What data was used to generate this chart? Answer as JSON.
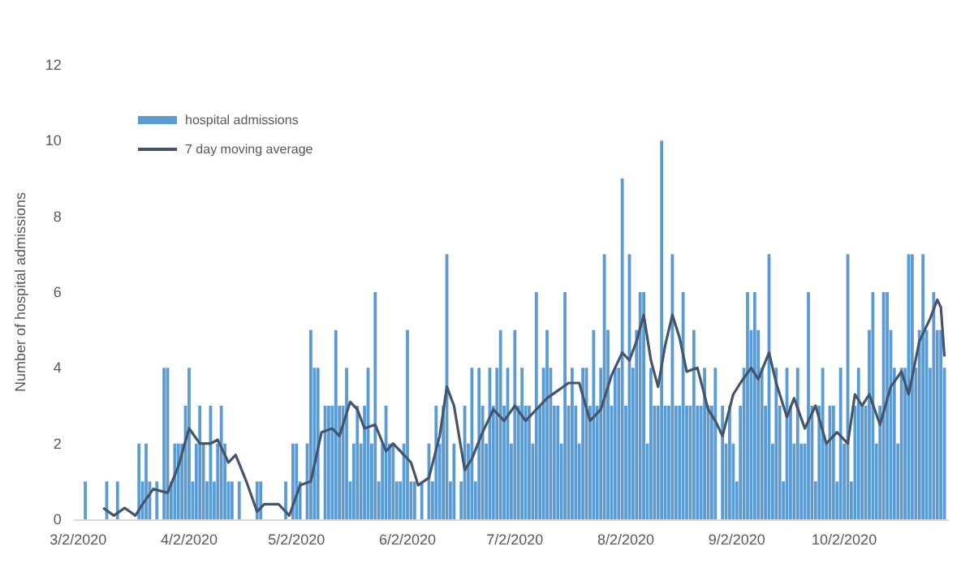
{
  "chart_data": {
    "type": "bar",
    "ylabel": "Number of hospital admissions",
    "x": [
      "2020-03-02",
      "2020-03-03",
      "2020-03-04",
      "2020-03-05",
      "2020-03-06",
      "2020-03-07",
      "2020-03-08",
      "2020-03-09",
      "2020-03-10",
      "2020-03-11",
      "2020-03-12",
      "2020-03-13",
      "2020-03-14",
      "2020-03-15",
      "2020-03-16",
      "2020-03-17",
      "2020-03-18",
      "2020-03-19",
      "2020-03-20",
      "2020-03-21",
      "2020-03-22",
      "2020-03-23",
      "2020-03-24",
      "2020-03-25",
      "2020-03-26",
      "2020-03-27",
      "2020-03-28",
      "2020-03-29",
      "2020-03-30",
      "2020-03-31",
      "2020-04-01",
      "2020-04-02",
      "2020-04-03",
      "2020-04-04",
      "2020-04-05",
      "2020-04-06",
      "2020-04-07",
      "2020-04-08",
      "2020-04-09",
      "2020-04-10",
      "2020-04-11",
      "2020-04-12",
      "2020-04-13",
      "2020-04-14",
      "2020-04-15",
      "2020-04-16",
      "2020-04-17",
      "2020-04-18",
      "2020-04-19",
      "2020-04-20",
      "2020-04-21",
      "2020-04-22",
      "2020-04-23",
      "2020-04-24",
      "2020-04-25",
      "2020-04-26",
      "2020-04-27",
      "2020-04-28",
      "2020-04-29",
      "2020-04-30",
      "2020-05-01",
      "2020-05-02",
      "2020-05-03",
      "2020-05-04",
      "2020-05-05",
      "2020-05-06",
      "2020-05-07",
      "2020-05-08",
      "2020-05-09",
      "2020-05-10",
      "2020-05-11",
      "2020-05-12",
      "2020-05-13",
      "2020-05-14",
      "2020-05-15",
      "2020-05-16",
      "2020-05-17",
      "2020-05-18",
      "2020-05-19",
      "2020-05-20",
      "2020-05-21",
      "2020-05-22",
      "2020-05-23",
      "2020-05-24",
      "2020-05-25",
      "2020-05-26",
      "2020-05-27",
      "2020-05-28",
      "2020-05-29",
      "2020-05-30",
      "2020-05-31",
      "2020-06-01",
      "2020-06-02",
      "2020-06-03",
      "2020-06-04",
      "2020-06-05",
      "2020-06-06",
      "2020-06-07",
      "2020-06-08",
      "2020-06-09",
      "2020-06-10",
      "2020-06-11",
      "2020-06-12",
      "2020-06-13",
      "2020-06-14",
      "2020-06-15",
      "2020-06-16",
      "2020-06-17",
      "2020-06-18",
      "2020-06-19",
      "2020-06-20",
      "2020-06-21",
      "2020-06-22",
      "2020-06-23",
      "2020-06-24",
      "2020-06-25",
      "2020-06-26",
      "2020-06-27",
      "2020-06-28",
      "2020-06-29",
      "2020-06-30",
      "2020-07-01",
      "2020-07-02",
      "2020-07-03",
      "2020-07-04",
      "2020-07-05",
      "2020-07-06",
      "2020-07-07",
      "2020-07-08",
      "2020-07-09",
      "2020-07-10",
      "2020-07-11",
      "2020-07-12",
      "2020-07-13",
      "2020-07-14",
      "2020-07-15",
      "2020-07-16",
      "2020-07-17",
      "2020-07-18",
      "2020-07-19",
      "2020-07-20",
      "2020-07-21",
      "2020-07-22",
      "2020-07-23",
      "2020-07-24",
      "2020-07-25",
      "2020-07-26",
      "2020-07-27",
      "2020-07-28",
      "2020-07-29",
      "2020-07-30",
      "2020-07-31",
      "2020-08-01",
      "2020-08-02",
      "2020-08-03",
      "2020-08-04",
      "2020-08-05",
      "2020-08-06",
      "2020-08-07",
      "2020-08-08",
      "2020-08-09",
      "2020-08-10",
      "2020-08-11",
      "2020-08-12",
      "2020-08-13",
      "2020-08-14",
      "2020-08-15",
      "2020-08-16",
      "2020-08-17",
      "2020-08-18",
      "2020-08-19",
      "2020-08-20",
      "2020-08-21",
      "2020-08-22",
      "2020-08-23",
      "2020-08-24",
      "2020-08-25",
      "2020-08-26",
      "2020-08-27",
      "2020-08-28",
      "2020-08-29",
      "2020-08-30",
      "2020-08-31",
      "2020-09-01",
      "2020-09-02",
      "2020-09-03",
      "2020-09-04",
      "2020-09-05",
      "2020-09-06",
      "2020-09-07",
      "2020-09-08",
      "2020-09-09",
      "2020-09-10",
      "2020-09-11",
      "2020-09-12",
      "2020-09-13",
      "2020-09-14",
      "2020-09-15",
      "2020-09-16",
      "2020-09-17",
      "2020-09-18",
      "2020-09-19",
      "2020-09-20",
      "2020-09-21",
      "2020-09-22",
      "2020-09-23",
      "2020-09-24",
      "2020-09-25",
      "2020-09-26",
      "2020-09-27",
      "2020-09-28",
      "2020-09-29",
      "2020-09-30",
      "2020-10-01",
      "2020-10-02",
      "2020-10-03",
      "2020-10-04",
      "2020-10-05",
      "2020-10-06",
      "2020-10-07",
      "2020-10-08",
      "2020-10-09",
      "2020-10-10",
      "2020-10-11",
      "2020-10-12",
      "2020-10-13",
      "2020-10-14",
      "2020-10-15",
      "2020-10-16",
      "2020-10-17",
      "2020-10-18",
      "2020-10-19",
      "2020-10-20",
      "2020-10-21",
      "2020-10-22",
      "2020-10-23",
      "2020-10-24",
      "2020-10-25",
      "2020-10-26",
      "2020-10-27",
      "2020-10-28",
      "2020-10-29",
      "2020-10-30"
    ],
    "series": [
      {
        "name": "hospital admissions",
        "color": "#5b9bd5",
        "values": [
          0,
          0,
          1,
          0,
          0,
          0,
          0,
          0,
          1,
          0,
          0,
          1,
          0,
          0,
          0,
          0,
          0,
          2,
          1,
          2,
          1,
          0,
          1,
          0,
          4,
          4,
          1,
          2,
          2,
          2,
          3,
          4,
          1,
          2,
          3,
          2,
          1,
          3,
          1,
          2,
          3,
          2,
          1,
          1,
          0,
          1,
          0,
          0,
          0,
          0,
          1,
          1,
          0,
          0,
          0,
          0,
          0,
          0,
          1,
          0,
          2,
          2,
          1,
          0,
          2,
          5,
          4,
          4,
          0,
          3,
          3,
          3,
          5,
          3,
          3,
          4,
          1,
          2,
          3,
          2,
          3,
          4,
          2,
          6,
          1,
          2,
          3,
          2,
          2,
          1,
          1,
          2,
          5,
          1,
          1,
          0,
          1,
          0,
          2,
          1,
          3,
          2,
          3,
          7,
          1,
          2,
          0,
          1,
          3,
          2,
          4,
          1,
          4,
          3,
          2,
          4,
          3,
          4,
          5,
          3,
          4,
          2,
          5,
          3,
          4,
          3,
          3,
          2,
          6,
          3,
          4,
          5,
          4,
          3,
          3,
          2,
          6,
          3,
          4,
          3,
          2,
          4,
          4,
          3,
          5,
          3,
          4,
          7,
          5,
          3,
          4,
          4,
          9,
          3,
          7,
          4,
          5,
          6,
          6,
          2,
          4,
          3,
          3,
          10,
          3,
          3,
          7,
          3,
          3,
          6,
          3,
          3,
          5,
          3,
          3,
          4,
          3,
          3,
          4,
          0,
          3,
          2,
          3,
          2,
          1,
          3,
          4,
          6,
          5,
          6,
          5,
          4,
          3,
          7,
          2,
          4,
          3,
          1,
          4,
          3,
          2,
          4,
          2,
          2,
          6,
          3,
          1,
          3,
          4,
          2,
          3,
          3,
          1,
          4,
          2,
          7,
          1,
          3,
          4,
          3,
          3,
          5,
          6,
          2,
          3,
          6,
          6,
          5,
          4,
          2,
          4,
          4,
          7,
          7,
          4,
          5,
          7,
          5,
          4,
          6,
          5,
          5,
          4
        ]
      },
      {
        "name": "7 day moving average",
        "type": "line",
        "color": "#44546a",
        "x": [
          "2020-03-09",
          "2020-03-12",
          "2020-03-15",
          "2020-03-18",
          "2020-03-20",
          "2020-03-23",
          "2020-03-27",
          "2020-03-30",
          "2020-04-02",
          "2020-04-05",
          "2020-04-08",
          "2020-04-10",
          "2020-04-13",
          "2020-04-15",
          "2020-04-18",
          "2020-04-21",
          "2020-04-23",
          "2020-04-27",
          "2020-04-30",
          "2020-05-03",
          "2020-05-06",
          "2020-05-09",
          "2020-05-12",
          "2020-05-14",
          "2020-05-17",
          "2020-05-19",
          "2020-05-21",
          "2020-05-24",
          "2020-05-27",
          "2020-05-29",
          "2020-06-01",
          "2020-06-03",
          "2020-06-05",
          "2020-06-08",
          "2020-06-11",
          "2020-06-13",
          "2020-06-15",
          "2020-06-18",
          "2020-06-20",
          "2020-06-23",
          "2020-06-26",
          "2020-06-29",
          "2020-07-02",
          "2020-07-05",
          "2020-07-08",
          "2020-07-11",
          "2020-07-14",
          "2020-07-17",
          "2020-07-20",
          "2020-07-23",
          "2020-07-26",
          "2020-07-29",
          "2020-08-01",
          "2020-08-03",
          "2020-08-05",
          "2020-08-07",
          "2020-08-09",
          "2020-08-11",
          "2020-08-13",
          "2020-08-15",
          "2020-08-17",
          "2020-08-19",
          "2020-08-22",
          "2020-08-25",
          "2020-08-27",
          "2020-08-29",
          "2020-09-01",
          "2020-09-03",
          "2020-09-06",
          "2020-09-08",
          "2020-09-11",
          "2020-09-13",
          "2020-09-16",
          "2020-09-18",
          "2020-09-21",
          "2020-09-24",
          "2020-09-27",
          "2020-09-30",
          "2020-10-03",
          "2020-10-05",
          "2020-10-07",
          "2020-10-09",
          "2020-10-12",
          "2020-10-15",
          "2020-10-18",
          "2020-10-20",
          "2020-10-23",
          "2020-10-26",
          "2020-10-28",
          "2020-10-29",
          "2020-10-30"
        ],
        "values": [
          0.3,
          0.1,
          0.3,
          0.1,
          0.4,
          0.8,
          0.7,
          1.4,
          2.4,
          2.0,
          2.0,
          2.1,
          1.5,
          1.7,
          1.0,
          0.2,
          0.4,
          0.4,
          0.1,
          0.9,
          1.0,
          2.3,
          2.4,
          2.2,
          3.1,
          2.9,
          2.4,
          2.5,
          1.8,
          2.0,
          1.7,
          1.5,
          0.9,
          1.1,
          2.2,
          3.5,
          3.0,
          1.3,
          1.6,
          2.3,
          2.9,
          2.6,
          3.0,
          2.6,
          2.9,
          3.2,
          3.4,
          3.6,
          3.6,
          2.6,
          2.9,
          3.8,
          4.4,
          4.2,
          4.7,
          5.4,
          4.2,
          3.5,
          4.6,
          5.4,
          4.8,
          3.9,
          4.0,
          2.9,
          2.6,
          2.2,
          3.3,
          3.6,
          4.0,
          3.7,
          4.4,
          3.6,
          2.7,
          3.2,
          2.4,
          3.0,
          2.0,
          2.3,
          2.0,
          3.3,
          3.0,
          3.3,
          2.5,
          3.5,
          3.9,
          3.3,
          4.7,
          5.3,
          5.8,
          5.6,
          4.3
        ]
      }
    ],
    "xlim": [
      "2020-03-01",
      "2020-10-31"
    ],
    "xticks": [
      {
        "value": "2020-03-02",
        "label": "3/2/2020"
      },
      {
        "value": "2020-04-02",
        "label": "4/2/2020"
      },
      {
        "value": "2020-05-02",
        "label": "5/2/2020"
      },
      {
        "value": "2020-06-02",
        "label": "6/2/2020"
      },
      {
        "value": "2020-07-02",
        "label": "7/2/2020"
      },
      {
        "value": "2020-08-02",
        "label": "8/2/2020"
      },
      {
        "value": "2020-09-02",
        "label": "9/2/2020"
      },
      {
        "value": "2020-10-02",
        "label": "10/2/2020"
      }
    ],
    "ylim": [
      0,
      12
    ],
    "yticks": [
      0,
      2,
      4,
      6,
      8,
      10,
      12
    ],
    "grid": false,
    "legend": "top left",
    "marker": "none"
  }
}
